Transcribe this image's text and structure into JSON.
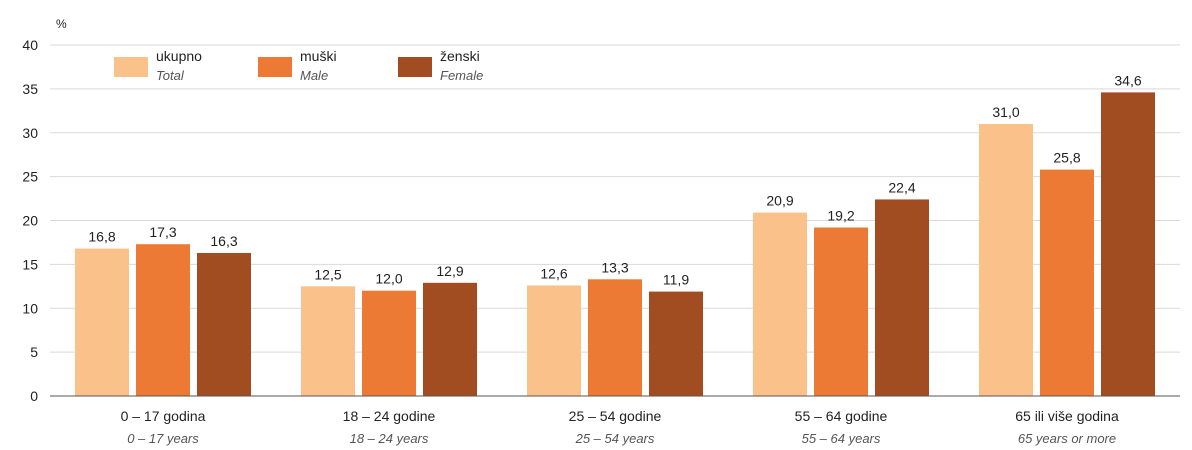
{
  "chart_data": {
    "type": "bar",
    "unit_label": "%",
    "ylim": [
      0,
      40
    ],
    "yticks": [
      0,
      5,
      10,
      15,
      20,
      25,
      30,
      35,
      40
    ],
    "grid": true,
    "legend_position": "top-left",
    "categories": [
      {
        "label": "0  – 17 godina",
        "sublabel": "0 – 17 years"
      },
      {
        "label": "18  – 24 godine",
        "sublabel": "18 – 24 years"
      },
      {
        "label": "25  – 54 godine",
        "sublabel": "25 – 54 years"
      },
      {
        "label": "55  – 64 godine",
        "sublabel": "55 – 64 years"
      },
      {
        "label": "65 ili više godina",
        "sublabel": "65 years or more"
      }
    ],
    "series": [
      {
        "name": "ukupno",
        "subname": "Total",
        "color": "#FBC18A",
        "values": [
          16.8,
          12.5,
          12.6,
          20.9,
          31.0
        ],
        "labels": [
          "16,8",
          "12,5",
          "12,6",
          "20,9",
          "31,0"
        ]
      },
      {
        "name": "muški",
        "subname": "Male",
        "color": "#EC7A34",
        "values": [
          17.3,
          12.0,
          13.3,
          19.2,
          25.8
        ],
        "labels": [
          "17,3",
          "12,0",
          "13,3",
          "19,2",
          "25,8"
        ]
      },
      {
        "name": "ženski",
        "subname": "Female",
        "color": "#A24D21",
        "values": [
          16.3,
          12.9,
          11.9,
          22.4,
          34.6
        ],
        "labels": [
          "16,3",
          "12,9",
          "11,9",
          "22,4",
          "34,6"
        ]
      }
    ]
  }
}
